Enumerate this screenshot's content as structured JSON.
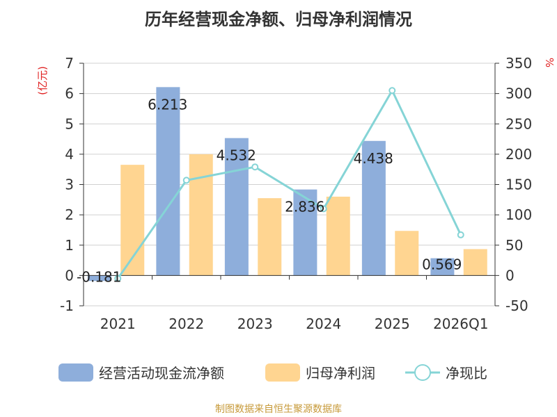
{
  "chart_data": {
    "type": "bar",
    "title": "历年经营现金净额、归母净利润情况",
    "categories": [
      "2021",
      "2022",
      "2023",
      "2024",
      "2025",
      "2026Q1"
    ],
    "series": [
      {
        "name": "经营活动现金流净额",
        "type": "bar",
        "axis": "left",
        "color": "#8eaedb",
        "values": [
          -0.181,
          6.213,
          4.532,
          2.836,
          4.438,
          0.569
        ]
      },
      {
        "name": "归母净利润",
        "type": "bar",
        "axis": "left",
        "color": "#ffd591",
        "values": [
          3.65,
          4.0,
          2.55,
          2.6,
          1.47,
          0.87
        ]
      },
      {
        "name": "净现比",
        "type": "line",
        "axis": "right",
        "color": "#85d4d6",
        "values": [
          -5,
          157,
          179,
          110,
          305,
          67
        ]
      }
    ],
    "data_labels": [
      "-0.181",
      "6.213",
      "4.532",
      "2.836",
      "4.438",
      "0.569"
    ],
    "left_axis": {
      "unit": "(亿元)",
      "min": -1,
      "max": 7,
      "ticks": [
        "-1",
        "0",
        "1",
        "2",
        "3",
        "4",
        "5",
        "6",
        "7"
      ]
    },
    "right_axis": {
      "unit": "%",
      "min": -50,
      "max": 350,
      "ticks": [
        "-50",
        "0",
        "50",
        "100",
        "150",
        "200",
        "250",
        "300",
        "350"
      ]
    },
    "grid": true,
    "legend_position": "bottom"
  },
  "source": "制图数据来自恒生聚源数据库"
}
